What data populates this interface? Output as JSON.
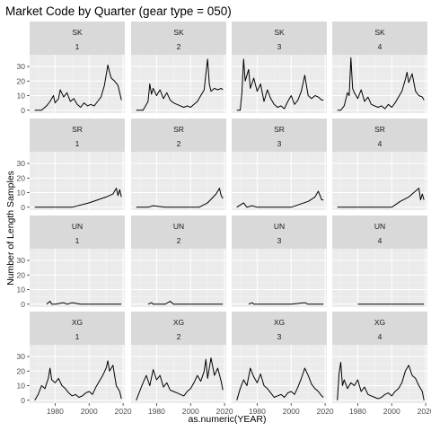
{
  "chart_data": {
    "type": "line",
    "title": "Market Code by Quarter (gear type = 050)",
    "xlabel": "as.numeric(YEAR)",
    "ylabel": "Number of Length Samples",
    "xlim": [
      1965,
      2021
    ],
    "ylim": [
      -2,
      38
    ],
    "x_ticks": [
      1980,
      2000,
      2020
    ],
    "y_ticks": [
      0,
      10,
      20,
      30
    ],
    "grid": true,
    "facets": {
      "rows": [
        "SK",
        "SR",
        "UN",
        "XG"
      ],
      "cols": [
        "1",
        "2",
        "3",
        "4"
      ]
    },
    "panels": [
      {
        "row": "SK",
        "col": "1",
        "x": [
          1968,
          1972,
          1975,
          1977,
          1979,
          1980,
          1982,
          1983,
          1985,
          1987,
          1989,
          1991,
          1993,
          1995,
          1997,
          1999,
          2001,
          2003,
          2005,
          2007,
          2009,
          2011,
          2012,
          2013,
          2015,
          2017,
          2019
        ],
        "y": [
          0,
          0,
          3,
          6,
          10,
          5,
          8,
          14,
          9,
          12,
          6,
          8,
          4,
          2,
          5,
          3,
          4,
          3,
          6,
          9,
          17,
          31,
          26,
          22,
          20,
          17,
          7
        ]
      },
      {
        "row": "SK",
        "col": "2",
        "x": [
          1968,
          1972,
          1975,
          1976,
          1977,
          1978,
          1980,
          1982,
          1984,
          1986,
          1988,
          1990,
          1992,
          1994,
          1996,
          1998,
          2000,
          2002,
          2004,
          2006,
          2008,
          2009,
          2010,
          2011,
          2012,
          2014,
          2016,
          2018,
          2019
        ],
        "y": [
          0,
          0,
          6,
          18,
          11,
          15,
          10,
          14,
          8,
          12,
          7,
          5,
          4,
          3,
          2,
          3,
          2,
          4,
          6,
          10,
          14,
          25,
          35,
          18,
          13,
          15,
          14,
          15,
          14
        ]
      },
      {
        "row": "SK",
        "col": "3",
        "x": [
          1968,
          1970,
          1971,
          1972,
          1973,
          1975,
          1976,
          1978,
          1980,
          1982,
          1984,
          1986,
          1988,
          1990,
          1992,
          1994,
          1996,
          1998,
          2000,
          2002,
          2004,
          2006,
          2008,
          2010,
          2012,
          2014,
          2016,
          2018,
          2019
        ],
        "y": [
          0,
          0,
          12,
          35,
          20,
          28,
          15,
          22,
          13,
          18,
          6,
          14,
          8,
          4,
          2,
          3,
          1,
          6,
          10,
          4,
          7,
          13,
          24,
          10,
          8,
          10,
          9,
          7,
          7
        ]
      },
      {
        "row": "SK",
        "col": "4",
        "x": [
          1968,
          1970,
          1972,
          1974,
          1975,
          1976,
          1977,
          1978,
          1980,
          1982,
          1984,
          1986,
          1988,
          1990,
          1992,
          1994,
          1996,
          1998,
          2000,
          2002,
          2004,
          2006,
          2008,
          2009,
          2010,
          2012,
          2014,
          2016,
          2018,
          2019
        ],
        "y": [
          0,
          0,
          3,
          12,
          10,
          36,
          15,
          12,
          8,
          14,
          6,
          9,
          4,
          3,
          2,
          3,
          1,
          4,
          2,
          5,
          9,
          13,
          21,
          26,
          19,
          25,
          13,
          10,
          9,
          7
        ]
      },
      {
        "row": "SR",
        "col": "1",
        "x": [
          1968,
          1985,
          1990,
          2000,
          2010,
          2014,
          2016,
          2017,
          2018,
          2019
        ],
        "y": [
          0,
          0,
          0,
          3,
          7,
          9,
          13,
          8,
          12,
          7
        ]
      },
      {
        "row": "SR",
        "col": "2",
        "x": [
          1968,
          1975,
          1978,
          1985,
          2000,
          2005,
          2010,
          2015,
          2017,
          2018,
          2019
        ],
        "y": [
          0,
          0,
          1,
          0,
          0,
          0,
          3,
          9,
          13,
          8,
          6
        ]
      },
      {
        "row": "SR",
        "col": "3",
        "x": [
          1968,
          1972,
          1974,
          1977,
          1980,
          1985,
          1990,
          2000,
          2010,
          2014,
          2016,
          2018,
          2019
        ],
        "y": [
          0,
          3,
          0,
          1,
          0,
          0,
          0,
          0,
          4,
          7,
          11,
          5,
          5
        ]
      },
      {
        "row": "SR",
        "col": "4",
        "x": [
          1968,
          1980,
          1990,
          2000,
          2005,
          2010,
          2016,
          2017,
          2018,
          2019
        ],
        "y": [
          0,
          0,
          0,
          0,
          4,
          7,
          13,
          5,
          9,
          5
        ]
      },
      {
        "row": "UN",
        "col": "1",
        "x": [
          1975,
          1977,
          1978,
          1980,
          1985,
          1987,
          1990,
          1995,
          2000,
          2005,
          2010,
          2019
        ],
        "y": [
          0,
          2,
          0,
          0,
          1,
          0,
          1,
          0,
          0,
          0,
          0,
          0
        ]
      },
      {
        "row": "UN",
        "col": "2",
        "x": [
          1975,
          1977,
          1978,
          1980,
          1985,
          1988,
          1990,
          1995,
          2000,
          2010,
          2019
        ],
        "y": [
          0,
          1,
          0,
          0,
          0,
          2,
          0,
          0,
          0,
          0,
          0
        ]
      },
      {
        "row": "UN",
        "col": "3",
        "x": [
          1975,
          1977,
          1978,
          1980,
          1985,
          1990,
          2000,
          2008,
          2010,
          2019
        ],
        "y": [
          0,
          1,
          0,
          0,
          0,
          0,
          0,
          1,
          0,
          0
        ]
      },
      {
        "row": "UN",
        "col": "4",
        "x": [
          1980,
          1990,
          2000,
          2010,
          2019
        ],
        "y": [
          0,
          0,
          0,
          0,
          0
        ]
      },
      {
        "row": "XG",
        "col": "1",
        "x": [
          1968,
          1970,
          1972,
          1974,
          1976,
          1977,
          1978,
          1980,
          1982,
          1984,
          1986,
          1988,
          1990,
          1992,
          1994,
          1996,
          1998,
          2000,
          2002,
          2004,
          2006,
          2008,
          2010,
          2011,
          2012,
          2014,
          2016,
          2018,
          2019
        ],
        "y": [
          0,
          4,
          10,
          8,
          15,
          22,
          14,
          12,
          15,
          10,
          8,
          5,
          3,
          4,
          2,
          3,
          5,
          6,
          4,
          9,
          13,
          17,
          22,
          27,
          20,
          24,
          10,
          6,
          1
        ]
      },
      {
        "row": "XG",
        "col": "2",
        "x": [
          1968,
          1970,
          1972,
          1974,
          1976,
          1978,
          1980,
          1982,
          1984,
          1986,
          1988,
          1990,
          1992,
          1994,
          1996,
          1998,
          2000,
          2002,
          2004,
          2006,
          2008,
          2009,
          2010,
          2012,
          2014,
          2016,
          2018,
          2019
        ],
        "y": [
          0,
          6,
          12,
          17,
          10,
          21,
          14,
          17,
          9,
          12,
          7,
          6,
          5,
          4,
          3,
          6,
          8,
          12,
          17,
          13,
          20,
          28,
          15,
          29,
          17,
          22,
          13,
          7
        ]
      },
      {
        "row": "XG",
        "col": "3",
        "x": [
          1968,
          1970,
          1972,
          1974,
          1976,
          1978,
          1980,
          1982,
          1984,
          1986,
          1988,
          1990,
          1992,
          1994,
          1996,
          1998,
          2000,
          2002,
          2004,
          2006,
          2008,
          2010,
          2012,
          2014,
          2016,
          2018,
          2019
        ],
        "y": [
          0,
          8,
          14,
          10,
          22,
          16,
          12,
          18,
          10,
          8,
          5,
          2,
          3,
          4,
          2,
          5,
          6,
          4,
          9,
          15,
          22,
          17,
          11,
          8,
          6,
          3,
          2
        ]
      },
      {
        "row": "XG",
        "col": "4",
        "x": [
          1968,
          1969,
          1970,
          1971,
          1972,
          1974,
          1976,
          1978,
          1980,
          1982,
          1984,
          1986,
          1988,
          1990,
          1992,
          1994,
          1996,
          1998,
          2000,
          2002,
          2004,
          2006,
          2008,
          2010,
          2012,
          2014,
          2016,
          2018,
          2019
        ],
        "y": [
          0,
          18,
          26,
          10,
          14,
          8,
          12,
          10,
          14,
          6,
          9,
          4,
          3,
          2,
          1,
          2,
          4,
          5,
          3,
          6,
          8,
          12,
          20,
          24,
          17,
          15,
          10,
          6,
          0
        ]
      }
    ]
  }
}
